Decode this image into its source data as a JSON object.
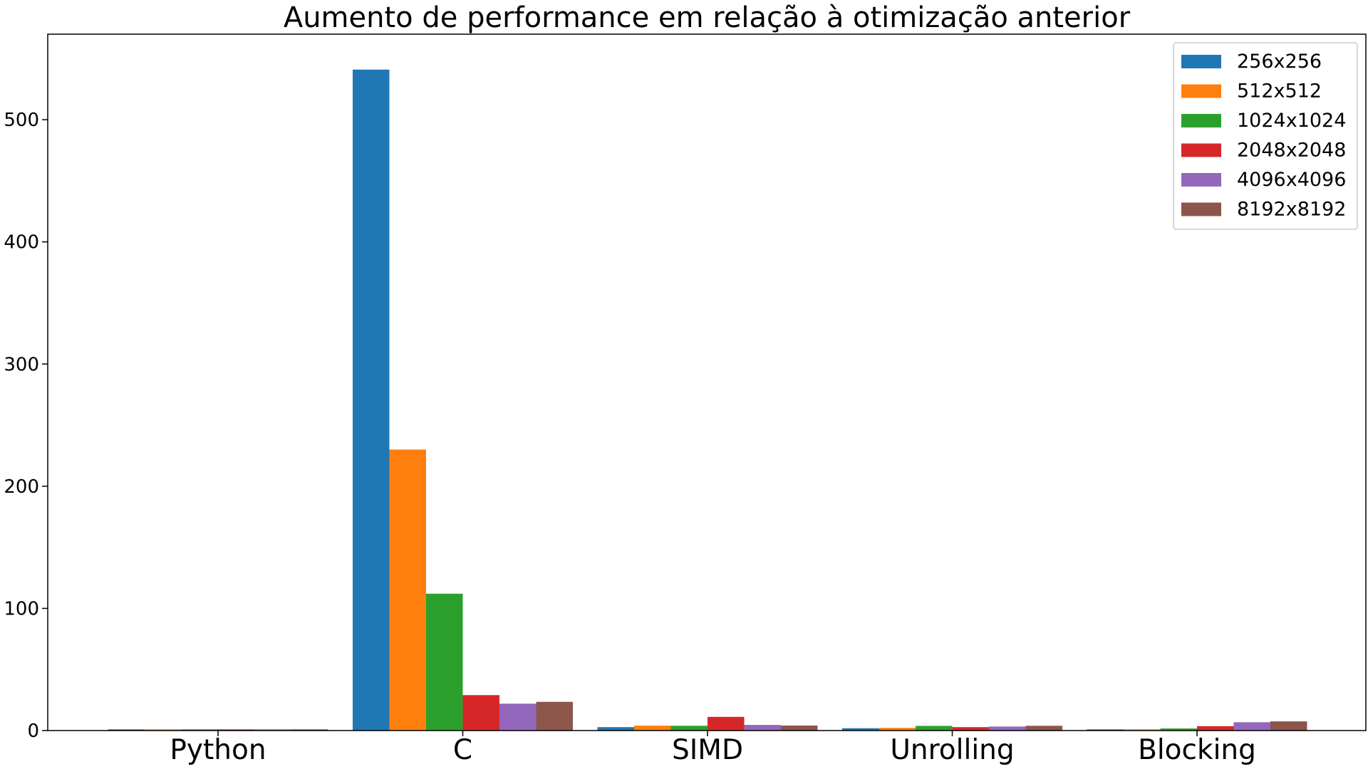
{
  "chart_data": {
    "type": "bar",
    "title": "Aumento de performance em relação à otimização anterior",
    "xlabel": "",
    "ylabel": "",
    "categories": [
      "Python",
      "C",
      "SIMD",
      "Unrolling",
      "Blocking"
    ],
    "ylim": [
      0,
      570
    ],
    "yticks": [
      0,
      100,
      200,
      300,
      400,
      500
    ],
    "grid": false,
    "legend_position": "top-right",
    "series": [
      {
        "name": "256x256",
        "color": "#1f77b4",
        "values": [
          1.0,
          541,
          2.8,
          1.9,
          1.0
        ]
      },
      {
        "name": "512x512",
        "color": "#ff7f0e",
        "values": [
          1.0,
          230,
          4.0,
          2.2,
          1.0
        ]
      },
      {
        "name": "1024x1024",
        "color": "#2ca02c",
        "values": [
          1.0,
          112,
          3.9,
          3.8,
          1.7
        ]
      },
      {
        "name": "2048x2048",
        "color": "#d62728",
        "values": [
          1.0,
          29,
          11.2,
          2.8,
          3.6
        ]
      },
      {
        "name": "4096x4096",
        "color": "#9467bd",
        "values": [
          1.0,
          22,
          4.6,
          3.3,
          6.8
        ]
      },
      {
        "name": "8192x8192",
        "color": "#8c564b",
        "values": [
          1.0,
          23.5,
          4.1,
          3.9,
          7.5
        ]
      }
    ]
  }
}
